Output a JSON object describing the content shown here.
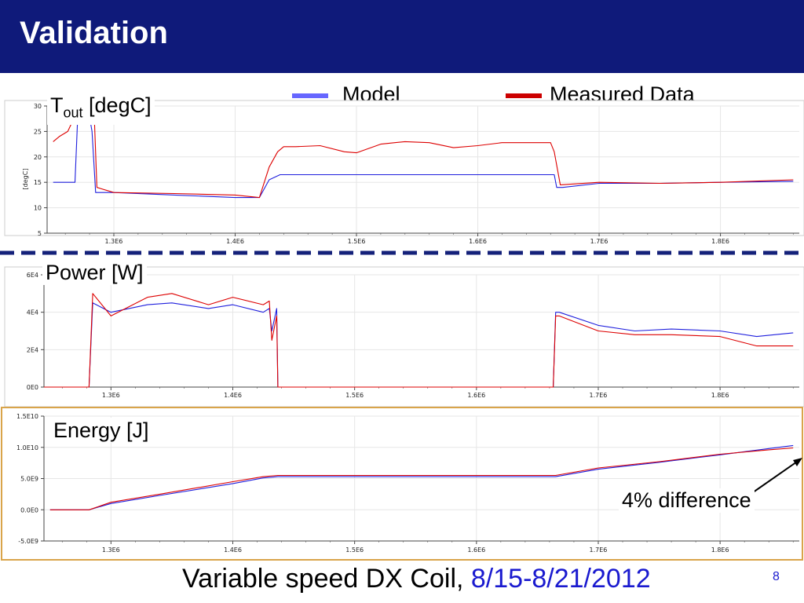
{
  "header": {
    "title": "Validation"
  },
  "legend": {
    "model": {
      "label": "Model",
      "color": "#6666ff"
    },
    "measured": {
      "label": "Measured Data",
      "color": "#cc0000"
    }
  },
  "footer": {
    "text": "Variable speed DX Coil, ",
    "date": "8/15-8/21/2012"
  },
  "page_number": "8",
  "annotation": "4% difference",
  "panel_labels": {
    "tout_main": "T",
    "tout_sub": "out",
    "tout_unit": " [degC]",
    "power": "Power [W]",
    "energy": "Energy [J]"
  },
  "colors": {
    "header_bg": "#0f1a7a",
    "model_line": "#1f1fdd",
    "measured_line": "#dd0000",
    "divider": "#14217a",
    "frame": "#cccccc"
  },
  "chart_data": [
    {
      "type": "line",
      "title": "",
      "ylabel": "[degC]",
      "xlim": [
        1245000,
        1865000
      ],
      "ylim": [
        5,
        30
      ],
      "x_ticks": [
        1300000,
        1400000,
        1500000,
        1600000,
        1700000,
        1800000
      ],
      "x_tick_labels": [
        "1.3E6",
        "1.4E6",
        "1.5E6",
        "1.6E6",
        "1.7E6",
        "1.8E6"
      ],
      "y_ticks": [
        5,
        10,
        15,
        20,
        25,
        30
      ],
      "y_tick_labels": [
        "5",
        "10",
        "15",
        "20",
        "25",
        "30"
      ],
      "grid": true,
      "series": [
        {
          "name": "Model",
          "x": [
            1250000,
            1268000,
            1270000,
            1280000,
            1282000,
            1285000,
            1300000,
            1350000,
            1400000,
            1420000,
            1428000,
            1437000,
            1440000,
            1500000,
            1600000,
            1660000,
            1663000,
            1665000,
            1670000,
            1700000,
            1750000,
            1800000,
            1860000
          ],
          "y": [
            15,
            15,
            26.5,
            27.8,
            25,
            13,
            13,
            12.5,
            12,
            12,
            15.5,
            16.5,
            16.5,
            16.5,
            16.5,
            16.5,
            16.5,
            14,
            14,
            14.8,
            14.8,
            15,
            15.2
          ]
        },
        {
          "name": "Measured Data",
          "x": [
            1250000,
            1255000,
            1262000,
            1266000,
            1268000,
            1272000,
            1280000,
            1284000,
            1286000,
            1300000,
            1350000,
            1400000,
            1420000,
            1428000,
            1435000,
            1440000,
            1450000,
            1470000,
            1490000,
            1500000,
            1520000,
            1540000,
            1560000,
            1580000,
            1600000,
            1620000,
            1640000,
            1660000,
            1663000,
            1668000,
            1700000,
            1750000,
            1800000,
            1860000
          ],
          "y": [
            23,
            24,
            25,
            27,
            26.5,
            28,
            29,
            27,
            14,
            13,
            12.8,
            12.5,
            12,
            18,
            21,
            22,
            22,
            22.2,
            21,
            20.8,
            22.5,
            23,
            22.8,
            21.8,
            22.2,
            22.8,
            22.8,
            22.8,
            21,
            14.5,
            15,
            14.8,
            15,
            15.5
          ]
        }
      ]
    },
    {
      "type": "line",
      "title": "",
      "xlim": [
        1245000,
        1865000
      ],
      "ylim": [
        0,
        60000
      ],
      "x_ticks": [
        1300000,
        1400000,
        1500000,
        1600000,
        1700000,
        1800000
      ],
      "x_tick_labels": [
        "1.3E6",
        "1.4E6",
        "1.5E6",
        "1.6E6",
        "1.7E6",
        "1.8E6"
      ],
      "y_ticks": [
        0,
        20000,
        40000,
        60000
      ],
      "y_tick_labels": [
        "0E0",
        "2E4",
        "4E4",
        "6E4"
      ],
      "grid": true,
      "series": [
        {
          "name": "Model",
          "x": [
            1245000,
            1280000,
            1282000,
            1285000,
            1300000,
            1330000,
            1350000,
            1380000,
            1400000,
            1425000,
            1430000,
            1432000,
            1436000,
            1437000,
            1500000,
            1600000,
            1663000,
            1665000,
            1668000,
            1700000,
            1730000,
            1760000,
            1800000,
            1830000,
            1860000
          ],
          "y": [
            0,
            0,
            0,
            45000,
            40000,
            44000,
            45000,
            42000,
            44000,
            40000,
            42000,
            30000,
            42000,
            0,
            0,
            0,
            0,
            40000,
            40000,
            33000,
            30000,
            31000,
            30000,
            27000,
            29000
          ]
        },
        {
          "name": "Measured Data",
          "x": [
            1245000,
            1280000,
            1282000,
            1285000,
            1300000,
            1330000,
            1350000,
            1380000,
            1400000,
            1425000,
            1430000,
            1432000,
            1436000,
            1437000,
            1500000,
            1600000,
            1663000,
            1665000,
            1668000,
            1700000,
            1730000,
            1760000,
            1800000,
            1830000,
            1860000
          ],
          "y": [
            0,
            0,
            0,
            50000,
            38000,
            48000,
            50000,
            44000,
            48000,
            44000,
            46000,
            25000,
            38000,
            0,
            0,
            0,
            0,
            38000,
            38000,
            30000,
            28000,
            28000,
            27000,
            22000,
            22000
          ]
        }
      ]
    },
    {
      "type": "line",
      "title": "",
      "xlim": [
        1245000,
        1865000
      ],
      "ylim": [
        -5000000000,
        15000000000
      ],
      "x_ticks": [
        1300000,
        1400000,
        1500000,
        1600000,
        1700000,
        1800000
      ],
      "x_tick_labels": [
        "1.3E6",
        "1.4E6",
        "1.5E6",
        "1.6E6",
        "1.7E6",
        "1.8E6"
      ],
      "y_ticks": [
        -5000000000,
        0,
        5000000000,
        10000000000,
        15000000000
      ],
      "y_tick_labels": [
        "-5.0E9",
        "0.0E0",
        "5.0E9",
        "1.0E10",
        "1.5E10"
      ],
      "grid": true,
      "series": [
        {
          "name": "Model",
          "x": [
            1250000,
            1282000,
            1300000,
            1340000,
            1400000,
            1425000,
            1437000,
            1500000,
            1600000,
            1665000,
            1700000,
            1750000,
            1800000,
            1840000,
            1860000
          ],
          "y": [
            0,
            0,
            1000000000,
            2300000000,
            4200000000,
            5100000000,
            5300000000,
            5300000000,
            5300000000,
            5300000000,
            6500000000,
            7600000000,
            8800000000,
            9800000000,
            10300000000
          ]
        },
        {
          "name": "Measured Data",
          "x": [
            1250000,
            1282000,
            1300000,
            1340000,
            1400000,
            1425000,
            1437000,
            1500000,
            1600000,
            1665000,
            1700000,
            1750000,
            1800000,
            1840000,
            1860000
          ],
          "y": [
            0,
            0,
            1200000000,
            2500000000,
            4500000000,
            5300000000,
            5500000000,
            5500000000,
            5500000000,
            5500000000,
            6700000000,
            7700000000,
            8900000000,
            9600000000,
            9900000000
          ]
        }
      ]
    }
  ]
}
